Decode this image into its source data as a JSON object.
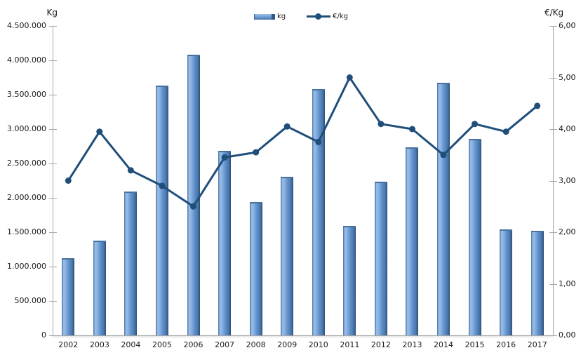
{
  "page": {
    "background": "#ffffff"
  },
  "legend": {
    "position": "top-center",
    "items": [
      {
        "label": "kg",
        "type": "bar"
      },
      {
        "label": "€/kg",
        "type": "line"
      }
    ]
  },
  "colors": {
    "bar_fill": "#5E8DC8",
    "bar_highlight": "#9DBFE8",
    "bar_shadow": "#2B4A75",
    "bar_cap": "#49719F",
    "line": "#1F4E79",
    "axis_line": "#A6A6A6",
    "text": "#1A1A1A"
  },
  "chart_data": {
    "type": "bar",
    "subtype": "bar+line combo, dual axis",
    "categories": [
      "2002",
      "2003",
      "2004",
      "2005",
      "2006",
      "2007",
      "2008",
      "2009",
      "2010",
      "2011",
      "2012",
      "2013",
      "2014",
      "2015",
      "2016",
      "2017"
    ],
    "series": [
      {
        "name": "kg",
        "type": "bar",
        "axis": "left",
        "color": "#5E8DC8",
        "values": [
          1120000,
          1380000,
          2090000,
          3630000,
          4080000,
          2680000,
          1940000,
          2310000,
          3580000,
          1590000,
          2230000,
          2730000,
          3670000,
          2860000,
          1540000,
          1520000
        ]
      },
      {
        "name": "€/kg",
        "type": "line",
        "axis": "right",
        "color": "#1F4E79",
        "values": [
          3.0,
          3.95,
          3.2,
          2.9,
          2.5,
          3.45,
          3.55,
          4.05,
          3.75,
          5.0,
          4.1,
          4.0,
          3.5,
          4.1,
          3.95,
          4.45
        ]
      }
    ],
    "left_axis": {
      "label": "Kg",
      "min": 0,
      "max": 4500000,
      "step": 500000,
      "tick_labels": [
        "0",
        "500.000",
        "1.000.000",
        "1.500.000",
        "2.000.000",
        "2.500.000",
        "3.000.000",
        "3.500.000",
        "4.000.000",
        "4.500.000"
      ]
    },
    "right_axis": {
      "label": "€/Kg",
      "min": 0,
      "max": 6,
      "step": 1,
      "tick_labels": [
        "0,00",
        "1,00",
        "2,00",
        "3,00",
        "4,00",
        "5,00",
        "6,00"
      ]
    },
    "grid": "off",
    "legend_position": "top-center",
    "title": ""
  }
}
